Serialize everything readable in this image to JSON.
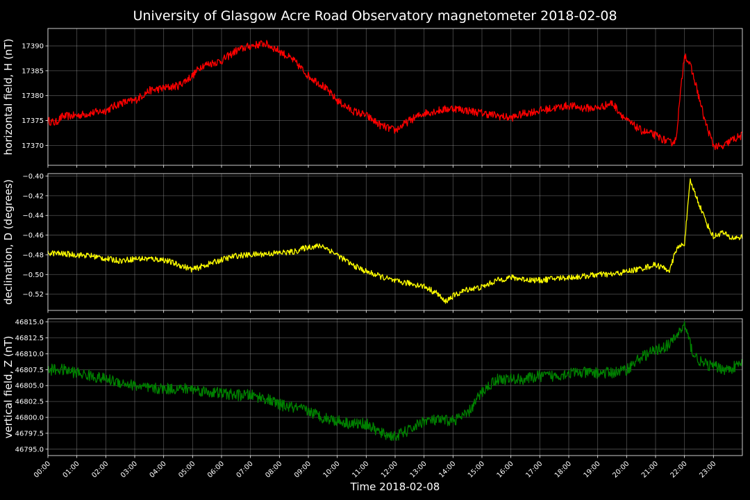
{
  "chart_data": {
    "title": "University of Glasgow Acre Road Observatory magnetometer 2018-02-08",
    "xlabel": "Time 2018-02-08",
    "x_ticks": [
      "00:00",
      "01:00",
      "02:00",
      "03:00",
      "04:00",
      "05:00",
      "06:00",
      "07:00",
      "08:00",
      "09:00",
      "10:00",
      "11:00",
      "12:00",
      "13:00",
      "14:00",
      "15:00",
      "16:00",
      "17:00",
      "18:00",
      "19:00",
      "20:00",
      "21:00",
      "22:00",
      "23:00"
    ],
    "x_range_hours": [
      0,
      24
    ],
    "grid": true,
    "panels": [
      {
        "type": "line",
        "ylabel": "horizontal field, H (nT)",
        "color": "#ff0000",
        "ylim": [
          17366,
          17393.5
        ],
        "yticks": [
          17370,
          17375,
          17380,
          17385,
          17390
        ],
        "tick_labels": [
          "17370",
          "17375",
          "17380",
          "17385",
          "17390"
        ],
        "noise": 0.8,
        "series": {
          "name": "H",
          "x": [
            0,
            0.25,
            0.5,
            1,
            1.5,
            2,
            2.5,
            3,
            3.5,
            4,
            4.5,
            5,
            5.3,
            6,
            6.5,
            7,
            7.5,
            8,
            8.5,
            9,
            9.5,
            10,
            10.5,
            11,
            11.5,
            12,
            12.5,
            13,
            13.5,
            14,
            14.5,
            15,
            15.5,
            16,
            16.5,
            17,
            17.5,
            18,
            18.5,
            19,
            19.5,
            20,
            20.5,
            21,
            21.5,
            21.7,
            22,
            22.2,
            22.4,
            22.7,
            23,
            23.3,
            23.6,
            24
          ],
          "y": [
            17375,
            17374.5,
            17375.8,
            17376,
            17376.5,
            17377,
            17378.5,
            17379,
            17381,
            17381.5,
            17382,
            17384,
            17386,
            17387,
            17389,
            17390,
            17390.5,
            17389,
            17387,
            17384,
            17382,
            17379,
            17377,
            17376,
            17374,
            17373,
            17375,
            17376.5,
            17377,
            17377.5,
            17377,
            17376.5,
            17376,
            17375.5,
            17376.5,
            17377,
            17377.5,
            17378,
            17377.5,
            17377.5,
            17378.5,
            17375,
            17373,
            17372,
            17370.5,
            17371,
            17388.5,
            17386,
            17382,
            17375,
            17370,
            17369.5,
            17371,
            17372
          ]
        }
      },
      {
        "type": "line",
        "ylabel": "declination, D (degrees)",
        "color": "#ffff00",
        "ylim": [
          -0.5365,
          -0.3975
        ],
        "yticks": [
          -0.52,
          -0.5,
          -0.48,
          -0.46,
          -0.44,
          -0.42,
          -0.4
        ],
        "tick_labels": [
          "−0.52",
          "−0.50",
          "−0.48",
          "−0.46",
          "−0.44",
          "−0.42",
          "−0.40"
        ],
        "noise": 0.003,
        "series": {
          "name": "D",
          "x": [
            0,
            0.5,
            1,
            1.5,
            2,
            2.5,
            3,
            3.5,
            4,
            4.5,
            5,
            5.5,
            6,
            6.5,
            7,
            7.5,
            8,
            8.5,
            9,
            9.5,
            10,
            10.5,
            11,
            11.5,
            12,
            12.5,
            13,
            13.5,
            13.7,
            14,
            14.5,
            15,
            15.5,
            16,
            16.5,
            17,
            17.5,
            18,
            18.5,
            19,
            19.5,
            20,
            20.5,
            21,
            21.5,
            21.7,
            22,
            22.2,
            22.5,
            22.8,
            23,
            23.3,
            23.6,
            24
          ],
          "y": [
            -0.478,
            -0.479,
            -0.48,
            -0.481,
            -0.484,
            -0.486,
            -0.484,
            -0.484,
            -0.485,
            -0.49,
            -0.495,
            -0.49,
            -0.485,
            -0.481,
            -0.48,
            -0.479,
            -0.478,
            -0.477,
            -0.472,
            -0.471,
            -0.48,
            -0.49,
            -0.497,
            -0.502,
            -0.507,
            -0.509,
            -0.512,
            -0.52,
            -0.528,
            -0.522,
            -0.515,
            -0.513,
            -0.506,
            -0.503,
            -0.505,
            -0.506,
            -0.504,
            -0.503,
            -0.502,
            -0.5,
            -0.5,
            -0.497,
            -0.494,
            -0.49,
            -0.496,
            -0.475,
            -0.468,
            -0.405,
            -0.428,
            -0.45,
            -0.462,
            -0.457,
            -0.463,
            -0.462
          ]
        }
      },
      {
        "type": "line",
        "ylabel": "vertical field, Z (nT)",
        "color": "#008000",
        "ylim": [
          46794,
          46815.5
        ],
        "yticks": [
          46795,
          46797.5,
          46800,
          46802.5,
          46805,
          46807.5,
          46810,
          46812.5,
          46815
        ],
        "tick_labels": [
          "46795.0",
          "46797.5",
          "46800.0",
          "46802.5",
          "46805.0",
          "46807.5",
          "46810.0",
          "46812.5",
          "46815.0"
        ],
        "noise": 0.9,
        "series": {
          "name": "Z",
          "x": [
            0,
            0.5,
            1,
            1.5,
            2,
            2.5,
            3,
            3.5,
            4,
            4.5,
            5,
            5.5,
            6,
            6.5,
            7,
            7.5,
            8,
            8.5,
            9,
            9.5,
            10,
            10.5,
            11,
            11.5,
            12,
            12.5,
            13,
            13.5,
            14,
            14.5,
            15,
            15.5,
            16,
            16.5,
            17,
            17.5,
            18,
            18.5,
            19,
            19.5,
            20,
            20.5,
            21,
            21.5,
            22,
            22.3,
            22.6,
            23,
            23.5,
            24
          ],
          "y": [
            46807.5,
            46807.5,
            46807,
            46806.5,
            46806,
            46805.5,
            46805,
            46804.5,
            46804.5,
            46804.5,
            46804.5,
            46804,
            46803.8,
            46803.5,
            46803.5,
            46803,
            46802,
            46801.5,
            46801,
            46800,
            46799.5,
            46799,
            46799,
            46797.5,
            46797,
            46798,
            46799.5,
            46799.5,
            46799.5,
            46800.5,
            46804,
            46806,
            46806,
            46806,
            46806.5,
            46806.5,
            46807,
            46807,
            46807,
            46807,
            46807.5,
            46809.5,
            46810.5,
            46811.5,
            46814.5,
            46810,
            46808.5,
            46808,
            46807.5,
            46808.5
          ]
        }
      }
    ]
  }
}
